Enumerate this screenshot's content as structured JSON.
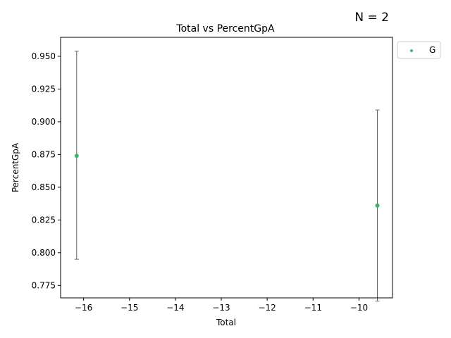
{
  "annotation": "N = 2",
  "chart_data": {
    "type": "scatter",
    "title": "Total vs PercentGpA",
    "xlabel": "Total",
    "ylabel": "PercentGpA",
    "xlim": [
      -16.5,
      -9.27
    ],
    "ylim": [
      0.7655,
      0.9645
    ],
    "x_ticks": [
      -16,
      -15,
      -14,
      -13,
      -12,
      -11,
      -10
    ],
    "x_tick_labels": [
      "−16",
      "−15",
      "−14",
      "−13",
      "−12",
      "−11",
      "−10"
    ],
    "y_ticks": [
      0.775,
      0.8,
      0.825,
      0.85,
      0.875,
      0.9,
      0.925,
      0.95
    ],
    "y_tick_labels": [
      "0.775",
      "0.800",
      "0.825",
      "0.850",
      "0.875",
      "0.900",
      "0.925",
      "0.950"
    ],
    "grid": false,
    "legend_position": "outside-upper-right",
    "series": [
      {
        "name": "G",
        "color": "#3cb371",
        "points": [
          {
            "x": -16.15,
            "y": 0.874,
            "y_low": 0.795,
            "y_high": 0.954
          },
          {
            "x": -9.6,
            "y": 0.836,
            "y_low": 0.763,
            "y_high": 0.909
          }
        ]
      }
    ],
    "errorbar_color": "#666666"
  }
}
